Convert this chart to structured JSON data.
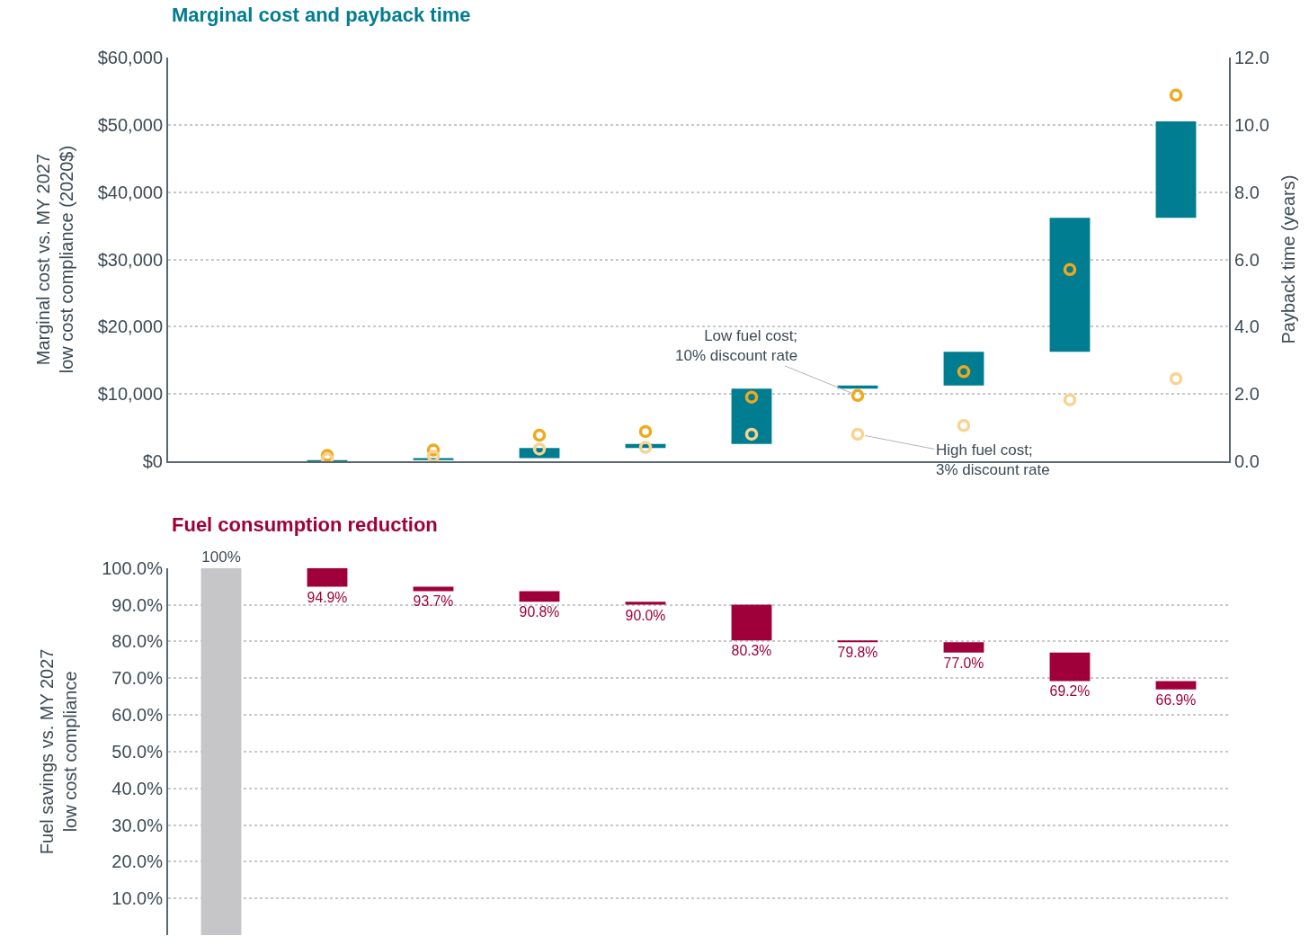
{
  "chart_data": [
    {
      "type": "bar",
      "title": "Marginal cost and payback time",
      "ylabel": "Marginal cost vs. MY 2027\nlow cost compliance (2020$)",
      "y2label": "Payback time (years)",
      "categories": [
        null,
        null,
        null,
        null,
        null,
        null,
        null,
        null,
        null,
        null
      ],
      "series": [
        {
          "type": "bar",
          "color": "#007d91",
          "base": [
            null,
            0,
            200,
            500,
            2000,
            2600,
            10800,
            11300,
            16300,
            36200
          ],
          "values": [
            null,
            200,
            300,
            1500,
            600,
            8200,
            500,
            5000,
            19900,
            14300
          ]
        },
        {
          "type": "scatter",
          "axis": "y2",
          "name": "Low fuel cost;\n10% discount rate",
          "color": "#f0a81c",
          "values": [
            null,
            0.18,
            0.34,
            0.78,
            0.89,
            1.91,
            1.96,
            2.67,
            5.7,
            10.88
          ]
        },
        {
          "type": "scatter",
          "axis": "y2",
          "name": "High fuel cost;\n3% discount rate",
          "color": "#f8d38f",
          "values": [
            null,
            0.08,
            0.16,
            0.37,
            0.42,
            0.81,
            0.81,
            1.07,
            1.83,
            2.46
          ]
        }
      ],
      "ylim": [
        0,
        60000
      ],
      "yticks": [
        {
          "value": 0,
          "label": "$0"
        },
        {
          "value": 10000,
          "label": "$10,000"
        },
        {
          "value": 20000,
          "label": "$20,000"
        },
        {
          "value": 30000,
          "label": "$30,000"
        },
        {
          "value": 40000,
          "label": "$40,000"
        },
        {
          "value": 50000,
          "label": "$50,000"
        },
        {
          "value": 60000,
          "label": "$60,000"
        }
      ],
      "y2lim": [
        0,
        12
      ],
      "y2ticks": [
        {
          "value": 0,
          "label": "0.0"
        },
        {
          "value": 2,
          "label": "2.0"
        },
        {
          "value": 4,
          "label": "4.0"
        },
        {
          "value": 6,
          "label": "6.0"
        },
        {
          "value": 8,
          "label": "8.0"
        },
        {
          "value": 10,
          "label": "10.0"
        },
        {
          "value": 12,
          "label": "12.0"
        }
      ],
      "grid": "y",
      "legend": false,
      "marker": "circle",
      "tick_labels": "y"
    },
    {
      "type": "bar",
      "title": "Fuel consumption reduction",
      "ylabel": "Fuel savings vs. MY 2027\nlow cost compliance",
      "categories": [
        null,
        null,
        null,
        null,
        null,
        null,
        null,
        null,
        null,
        null
      ],
      "base": [
        0,
        100,
        94.9,
        93.7,
        90.8,
        90.0,
        80.3,
        79.8,
        77.0,
        69.2
      ],
      "values": [
        100,
        -5.1,
        -1.2,
        -2.9,
        -0.8,
        -9.7,
        -0.5,
        -2.8,
        -7.8,
        -2.3
      ],
      "value_labels": [
        "100%",
        "94.9%",
        "93.7%",
        "90.8%",
        "90.0%",
        "80.3%",
        "79.8%",
        "77.0%",
        "69.2%",
        "66.9%"
      ],
      "colors": [
        "#c6c6c8",
        "#a0003a",
        "#a0003a",
        "#a0003a",
        "#a0003a",
        "#a0003a",
        "#a0003a",
        "#a0003a",
        "#a0003a",
        "#a0003a"
      ],
      "ylim": [
        0,
        100
      ],
      "yticks": [
        {
          "value": 10,
          "label": "10.0%"
        },
        {
          "value": 20,
          "label": "20.0%"
        },
        {
          "value": 30,
          "label": "30.0%"
        },
        {
          "value": 40,
          "label": "40.0%"
        },
        {
          "value": 50,
          "label": "50.0%"
        },
        {
          "value": 60,
          "label": "60.0%"
        },
        {
          "value": 70,
          "label": "70.0%"
        },
        {
          "value": 80,
          "label": "80.0%"
        },
        {
          "value": 90,
          "label": "90.0%"
        },
        {
          "value": 100,
          "label": "100.0%"
        }
      ],
      "grid": "y",
      "legend": false,
      "tick_labels": "y"
    }
  ]
}
